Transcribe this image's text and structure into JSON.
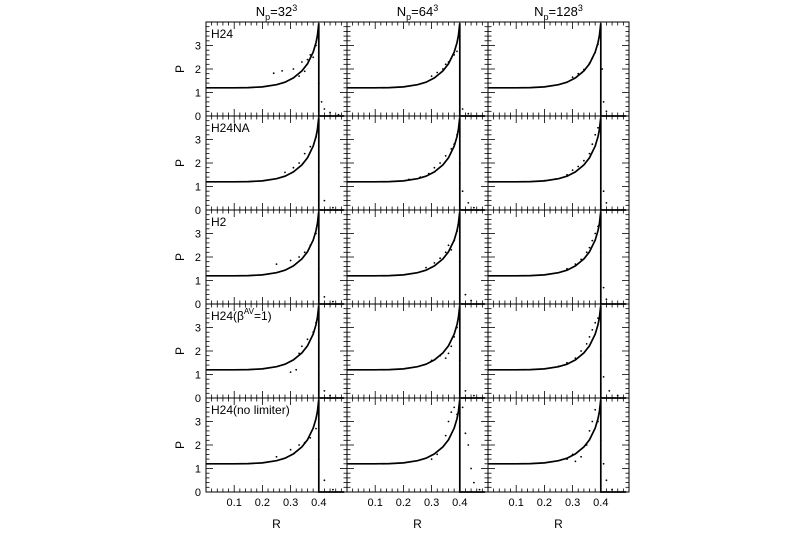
{
  "figure": {
    "column_headers": [
      {
        "base": "N",
        "sub": "p",
        "eq": "=32",
        "sup": "3"
      },
      {
        "base": "N",
        "sub": "p",
        "eq": "=64",
        "sup": "3"
      },
      {
        "base": "N",
        "sub": "p",
        "eq": "=128",
        "sup": "3"
      }
    ],
    "row_labels": [
      {
        "text": "H24"
      },
      {
        "text": "H24NA"
      },
      {
        "text": "H2"
      },
      {
        "text": "H24(",
        "beta": "β",
        "sup": "AV",
        "rest": "=1)"
      },
      {
        "text": "H24(no limiter)"
      }
    ],
    "ylabel": "P",
    "xlabel": "R"
  },
  "chart_data": {
    "type": "scatter",
    "layout": "grid 5 rows x 3 columns",
    "xlim": [
      0.0,
      0.5
    ],
    "ylim": [
      0,
      4
    ],
    "x_ticks": [
      0.1,
      0.2,
      0.3,
      0.4
    ],
    "y_ticks": [
      0,
      1,
      2,
      3
    ],
    "reference_curve": {
      "description": "analytic solution drawn as solid line in every panel",
      "x": [
        0.0,
        0.05,
        0.1,
        0.15,
        0.2,
        0.25,
        0.28,
        0.31,
        0.34,
        0.36,
        0.38,
        0.39,
        0.395,
        0.4,
        0.4,
        0.49
      ],
      "y": [
        1.2,
        1.2,
        1.2,
        1.21,
        1.24,
        1.33,
        1.44,
        1.62,
        1.92,
        2.22,
        2.72,
        3.12,
        3.42,
        3.95,
        0.0,
        0.0
      ]
    },
    "panels": [
      {
        "row": "H24",
        "col": "N_p=32^3",
        "scatter": [
          [
            0.24,
            1.82
          ],
          [
            0.27,
            1.92
          ],
          [
            0.31,
            2.0
          ],
          [
            0.33,
            1.7
          ],
          [
            0.34,
            2.3
          ],
          [
            0.35,
            1.9
          ],
          [
            0.36,
            2.4
          ],
          [
            0.37,
            2.6
          ],
          [
            0.38,
            2.5
          ],
          [
            0.39,
            3.0
          ],
          [
            0.4,
            1.4
          ],
          [
            0.41,
            0.6
          ],
          [
            0.42,
            0.3
          ],
          [
            0.44,
            0.15
          ],
          [
            0.47,
            0.05
          ]
        ]
      },
      {
        "row": "H24",
        "col": "N_p=64^3",
        "scatter": [
          [
            0.3,
            1.7
          ],
          [
            0.32,
            1.85
          ],
          [
            0.34,
            2.0
          ],
          [
            0.35,
            2.2
          ],
          [
            0.36,
            2.3
          ],
          [
            0.37,
            2.45
          ],
          [
            0.38,
            2.6
          ],
          [
            0.39,
            2.75
          ],
          [
            0.4,
            2.9
          ],
          [
            0.41,
            0.3
          ],
          [
            0.43,
            0.1
          ]
        ]
      },
      {
        "row": "H24",
        "col": "N_p=128^3",
        "scatter": [
          [
            0.3,
            1.65
          ],
          [
            0.32,
            1.8
          ],
          [
            0.34,
            1.98
          ],
          [
            0.36,
            2.25
          ],
          [
            0.37,
            2.45
          ],
          [
            0.38,
            2.7
          ],
          [
            0.39,
            3.05
          ],
          [
            0.4,
            3.7
          ],
          [
            0.405,
            2.0
          ],
          [
            0.41,
            0.6
          ],
          [
            0.42,
            0.2
          ]
        ]
      },
      {
        "row": "H24NA",
        "col": "N_p=32^3",
        "scatter": [
          [
            0.28,
            1.6
          ],
          [
            0.31,
            1.8
          ],
          [
            0.33,
            2.0
          ],
          [
            0.35,
            2.4
          ],
          [
            0.37,
            2.7
          ],
          [
            0.39,
            3.1
          ],
          [
            0.4,
            1.6
          ],
          [
            0.42,
            0.4
          ],
          [
            0.45,
            0.1
          ]
        ]
      },
      {
        "row": "H24NA",
        "col": "N_p=64^3",
        "scatter": [
          [
            0.22,
            1.3
          ],
          [
            0.26,
            1.4
          ],
          [
            0.29,
            1.55
          ],
          [
            0.31,
            1.8
          ],
          [
            0.33,
            2.0
          ],
          [
            0.35,
            2.3
          ],
          [
            0.37,
            2.6
          ],
          [
            0.38,
            2.8
          ],
          [
            0.39,
            3.2
          ],
          [
            0.4,
            2.0
          ],
          [
            0.41,
            0.8
          ],
          [
            0.43,
            0.3
          ],
          [
            0.45,
            0.1
          ]
        ]
      },
      {
        "row": "H24NA",
        "col": "N_p=128^3",
        "scatter": [
          [
            0.2,
            1.25
          ],
          [
            0.24,
            1.32
          ],
          [
            0.28,
            1.5
          ],
          [
            0.3,
            1.7
          ],
          [
            0.32,
            1.85
          ],
          [
            0.34,
            2.1
          ],
          [
            0.36,
            2.4
          ],
          [
            0.37,
            2.8
          ],
          [
            0.38,
            3.2
          ],
          [
            0.39,
            3.5
          ],
          [
            0.4,
            2.5
          ],
          [
            0.41,
            0.8
          ],
          [
            0.42,
            0.3
          ]
        ]
      },
      {
        "row": "H2",
        "col": "N_p=32^3",
        "scatter": [
          [
            0.25,
            1.7
          ],
          [
            0.3,
            1.85
          ],
          [
            0.33,
            2.0
          ],
          [
            0.35,
            2.2
          ],
          [
            0.37,
            2.5
          ],
          [
            0.39,
            3.0
          ],
          [
            0.4,
            1.5
          ],
          [
            0.42,
            0.3
          ],
          [
            0.45,
            0.1
          ]
        ]
      },
      {
        "row": "H2",
        "col": "N_p=64^3",
        "scatter": [
          [
            0.28,
            1.55
          ],
          [
            0.31,
            1.75
          ],
          [
            0.33,
            1.95
          ],
          [
            0.35,
            2.2
          ],
          [
            0.36,
            2.5
          ],
          [
            0.37,
            2.3
          ],
          [
            0.38,
            2.7
          ],
          [
            0.39,
            3.1
          ],
          [
            0.4,
            1.8
          ],
          [
            0.42,
            0.4
          ],
          [
            0.44,
            0.15
          ]
        ]
      },
      {
        "row": "H2",
        "col": "N_p=128^3",
        "scatter": [
          [
            0.28,
            1.5
          ],
          [
            0.31,
            1.7
          ],
          [
            0.33,
            1.9
          ],
          [
            0.35,
            2.2
          ],
          [
            0.36,
            2.4
          ],
          [
            0.37,
            2.7
          ],
          [
            0.38,
            3.0
          ],
          [
            0.39,
            3.3
          ],
          [
            0.4,
            2.2
          ],
          [
            0.41,
            0.7
          ],
          [
            0.42,
            0.2
          ]
        ]
      },
      {
        "row": "H24(beta^AV=1)",
        "col": "N_p=32^3",
        "scatter": [
          [
            0.3,
            1.1
          ],
          [
            0.32,
            1.2
          ],
          [
            0.33,
            1.9
          ],
          [
            0.34,
            2.2
          ],
          [
            0.36,
            2.5
          ],
          [
            0.38,
            2.8
          ],
          [
            0.39,
            3.2
          ],
          [
            0.4,
            1.0
          ],
          [
            0.42,
            0.3
          ],
          [
            0.44,
            0.1
          ]
        ]
      },
      {
        "row": "H24(beta^AV=1)",
        "col": "N_p=64^3",
        "scatter": [
          [
            0.3,
            1.6
          ],
          [
            0.33,
            1.8
          ],
          [
            0.35,
            1.7
          ],
          [
            0.36,
            1.9
          ],
          [
            0.37,
            2.2
          ],
          [
            0.38,
            2.6
          ],
          [
            0.39,
            3.0
          ],
          [
            0.4,
            1.6
          ],
          [
            0.42,
            0.3
          ],
          [
            0.45,
            0.1
          ]
        ]
      },
      {
        "row": "H24(beta^AV=1)",
        "col": "N_p=128^3",
        "scatter": [
          [
            0.25,
            1.35
          ],
          [
            0.28,
            1.5
          ],
          [
            0.31,
            1.7
          ],
          [
            0.33,
            2.0
          ],
          [
            0.35,
            2.3
          ],
          [
            0.36,
            2.6
          ],
          [
            0.37,
            2.9
          ],
          [
            0.38,
            3.2
          ],
          [
            0.39,
            3.4
          ],
          [
            0.4,
            1.8
          ],
          [
            0.41,
            0.9
          ],
          [
            0.43,
            0.3
          ],
          [
            0.46,
            0.1
          ]
        ]
      },
      {
        "row": "H24(no limiter)",
        "col": "N_p=32^3",
        "scatter": [
          [
            0.25,
            1.5
          ],
          [
            0.3,
            1.8
          ],
          [
            0.33,
            2.0
          ],
          [
            0.35,
            2.1
          ],
          [
            0.37,
            2.3
          ],
          [
            0.39,
            2.7
          ],
          [
            0.4,
            1.4
          ],
          [
            0.42,
            0.5
          ],
          [
            0.45,
            0.1
          ]
        ]
      },
      {
        "row": "H24(no limiter)",
        "col": "N_p=64^3",
        "scatter": [
          [
            0.3,
            1.4
          ],
          [
            0.32,
            1.6
          ],
          [
            0.35,
            2.4
          ],
          [
            0.36,
            3.0
          ],
          [
            0.37,
            3.4
          ],
          [
            0.38,
            3.6
          ],
          [
            0.39,
            3.3
          ],
          [
            0.4,
            2.8
          ],
          [
            0.41,
            3.6
          ],
          [
            0.42,
            2.5
          ],
          [
            0.43,
            2.0
          ],
          [
            0.44,
            1.0
          ],
          [
            0.45,
            0.4
          ],
          [
            0.47,
            0.1
          ]
        ]
      },
      {
        "row": "H24(no limiter)",
        "col": "N_p=128^3",
        "scatter": [
          [
            0.28,
            1.4
          ],
          [
            0.3,
            1.6
          ],
          [
            0.31,
            1.3
          ],
          [
            0.33,
            1.5
          ],
          [
            0.35,
            2.0
          ],
          [
            0.36,
            2.6
          ],
          [
            0.37,
            3.0
          ],
          [
            0.38,
            3.5
          ],
          [
            0.39,
            3.0
          ],
          [
            0.4,
            2.2
          ],
          [
            0.41,
            1.2
          ],
          [
            0.42,
            0.5
          ],
          [
            0.44,
            0.1
          ]
        ]
      }
    ]
  }
}
